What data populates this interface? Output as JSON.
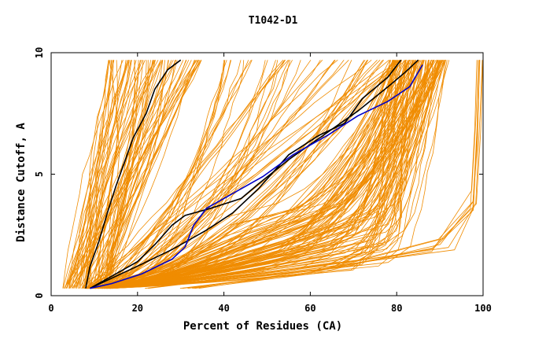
{
  "chart_data": {
    "type": "line",
    "title": "T1042-D1",
    "xlabel": "Percent of Residues (CA)",
    "ylabel": "Distance Cutoff, A",
    "xlim": [
      0,
      100
    ],
    "ylim": [
      0,
      10
    ],
    "x_ticks": [
      "0",
      "20",
      "40",
      "60",
      "80",
      "100"
    ],
    "y_ticks": [
      "0",
      "5",
      "10"
    ],
    "grid": false,
    "legend": "none",
    "colors": {
      "background_models": "#f08c00",
      "highlight_black": "#000000",
      "highlight_blue": "#0000c8"
    },
    "series": [
      {
        "color": "#000000",
        "points": [
          [
            8,
            0.3
          ],
          [
            9,
            1.2
          ],
          [
            11,
            2.2
          ],
          [
            13,
            3.4
          ],
          [
            15,
            4.5
          ],
          [
            17,
            5.5
          ],
          [
            19,
            6.5
          ],
          [
            22,
            7.5
          ],
          [
            24,
            8.5
          ],
          [
            27,
            9.3
          ],
          [
            30,
            9.7
          ]
        ]
      },
      {
        "color": "#000000",
        "points": [
          [
            9,
            0.3
          ],
          [
            14,
            0.8
          ],
          [
            20,
            1.4
          ],
          [
            24,
            2.1
          ],
          [
            28,
            2.9
          ],
          [
            31,
            3.3
          ],
          [
            37,
            3.6
          ],
          [
            44,
            4.0
          ],
          [
            48,
            4.6
          ],
          [
            55,
            5.6
          ],
          [
            63,
            6.6
          ],
          [
            71,
            7.6
          ],
          [
            78,
            8.6
          ],
          [
            82,
            9.2
          ],
          [
            85,
            9.7
          ]
        ]
      },
      {
        "color": "#000000",
        "points": [
          [
            9,
            0.3
          ],
          [
            15,
            0.8
          ],
          [
            21,
            1.3
          ],
          [
            28,
            1.9
          ],
          [
            36,
            2.7
          ],
          [
            42,
            3.4
          ],
          [
            48,
            4.4
          ],
          [
            55,
            5.8
          ],
          [
            62,
            6.6
          ],
          [
            68,
            7.1
          ],
          [
            72,
            8.1
          ],
          [
            78,
            9.0
          ],
          [
            81,
            9.7
          ]
        ]
      },
      {
        "color": "#0000c8",
        "points": [
          [
            9,
            0.3
          ],
          [
            14,
            0.5
          ],
          [
            21,
            0.9
          ],
          [
            28,
            1.5
          ],
          [
            31,
            2.0
          ],
          [
            33,
            2.9
          ],
          [
            36,
            3.6
          ],
          [
            42,
            4.2
          ],
          [
            49,
            4.9
          ],
          [
            56,
            5.8
          ],
          [
            64,
            6.6
          ],
          [
            71,
            7.4
          ],
          [
            78,
            8.0
          ],
          [
            83,
            8.6
          ],
          [
            86,
            9.5
          ]
        ]
      }
    ]
  }
}
